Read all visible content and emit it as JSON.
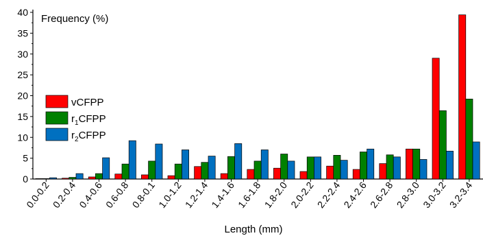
{
  "chart_data": {
    "type": "bar",
    "title": "",
    "xlabel": "Length (mm)",
    "ylabel": "Frequency (%)",
    "ylim": [
      0,
      40
    ],
    "yticks": [
      0,
      5,
      10,
      15,
      20,
      25,
      30,
      35,
      40
    ],
    "categories": [
      "0.0-0.2",
      "0.2-0.4",
      "0.4-0.6",
      "0.6-0.8",
      "0.8-0.1",
      "1.0-1.2",
      "1.2-1.4",
      "1.4-1.6",
      "1.6-1.8",
      "1.8-2.0",
      "2.0-2.2",
      "2.2-2.4",
      "2.4-2.6",
      "2.6-2.8",
      "2.8-3.0",
      "3.0-3.2",
      "3.2-3.4"
    ],
    "legend_position": "left",
    "series": [
      {
        "name": "vCFPP",
        "legend_main": "vCFPP",
        "legend_sub": "",
        "legend_tail": "",
        "color": "#ff0000",
        "values": [
          0.0,
          0.2,
          0.5,
          1.2,
          1.0,
          0.8,
          3.0,
          1.3,
          2.3,
          2.6,
          1.8,
          3.1,
          2.3,
          3.7,
          7.2,
          29.0,
          39.4
        ]
      },
      {
        "name": "r1CFPP",
        "legend_main": "r",
        "legend_sub": "1",
        "legend_tail": "CFPP",
        "color": "#008000",
        "values": [
          0.0,
          0.4,
          1.3,
          3.6,
          4.3,
          3.6,
          4.0,
          5.4,
          4.3,
          6.0,
          5.3,
          5.7,
          6.5,
          5.8,
          7.2,
          16.4,
          19.2
        ]
      },
      {
        "name": "r2CFPP",
        "legend_main": "r",
        "legend_sub": "2",
        "legend_tail": "CFPP",
        "color": "#0070c0",
        "values": [
          0.3,
          1.3,
          5.1,
          9.2,
          8.4,
          7.0,
          5.5,
          8.5,
          7.0,
          4.3,
          5.3,
          4.5,
          7.2,
          5.3,
          4.7,
          6.7,
          8.9
        ]
      }
    ]
  }
}
